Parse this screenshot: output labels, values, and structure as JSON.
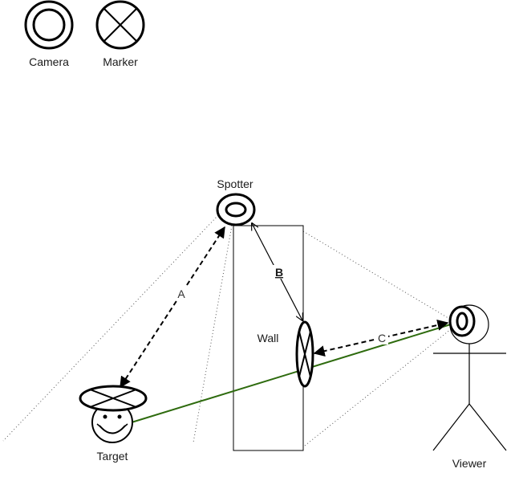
{
  "legend": {
    "camera_label": "Camera",
    "marker_label": "Marker"
  },
  "nodes": {
    "spotter_label": "Spotter",
    "wall_label": "Wall",
    "target_label": "Target",
    "viewer_label": "Viewer"
  },
  "edges": {
    "a_label": "A",
    "b_label": "B",
    "c_label": "C"
  },
  "colors": {
    "stroke": "#000000",
    "sightline": "#2e6b0e",
    "dotted": "#555555"
  }
}
